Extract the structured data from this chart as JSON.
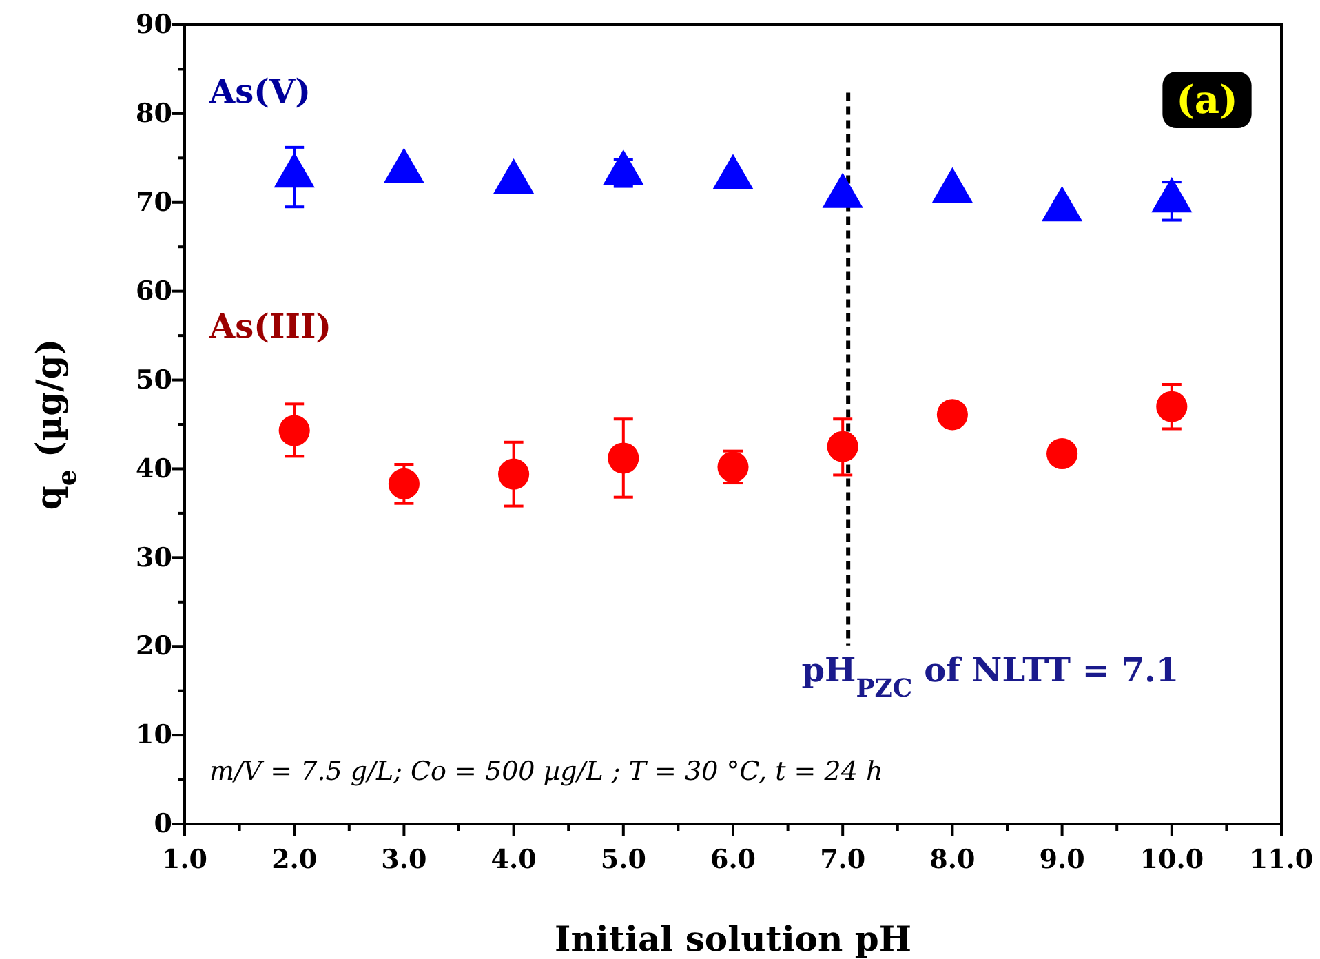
{
  "chart_data": {
    "type": "scatter",
    "xlabel": "Initial solution pH",
    "ylabel": "q$_{e}$ (µg/g)",
    "x": [
      2,
      3,
      4,
      5,
      6,
      7,
      8,
      9,
      10
    ],
    "series": [
      {
        "name": "As(V)",
        "color": "#0000ff",
        "marker": "triangle",
        "values": [
          73,
          73.5,
          72.3,
          73.3,
          72.8,
          70.7,
          71.3,
          69.2,
          70.2
        ],
        "errors": [
          [
            69.5,
            76.2
          ],
          null,
          null,
          [
            71.8,
            74.8
          ],
          null,
          null,
          null,
          null,
          [
            68,
            72.3
          ]
        ]
      },
      {
        "name": "As(III)",
        "color": "#ff0000",
        "marker": "circle",
        "values": [
          44.3,
          38.3,
          39.4,
          41.2,
          40.2,
          42.5,
          46.1,
          41.7,
          47
        ],
        "errors": [
          [
            41.4,
            47.3
          ],
          [
            36.1,
            40.5
          ],
          [
            35.8,
            43
          ],
          [
            36.8,
            45.6
          ],
          [
            38.4,
            42
          ],
          [
            39.3,
            45.6
          ],
          null,
          null,
          [
            44.5,
            49.5
          ]
        ]
      }
    ],
    "xlim": [
      1,
      11
    ],
    "xticks": [
      {
        "value": 1,
        "label": "1.0"
      },
      {
        "value": 1.5,
        "label": null
      },
      {
        "value": 2,
        "label": "2.0"
      },
      {
        "value": 2.5,
        "label": null
      },
      {
        "value": 3,
        "label": "3.0"
      },
      {
        "value": 3.5,
        "label": null
      },
      {
        "value": 4,
        "label": "4.0"
      },
      {
        "value": 4.5,
        "label": null
      },
      {
        "value": 5,
        "label": "5.0"
      },
      {
        "value": 5.5,
        "label": null
      },
      {
        "value": 6,
        "label": "6.0"
      },
      {
        "value": 6.5,
        "label": null
      },
      {
        "value": 7,
        "label": "7.0"
      },
      {
        "value": 7.5,
        "label": null
      },
      {
        "value": 8,
        "label": "8.0"
      },
      {
        "value": 8.5,
        "label": null
      },
      {
        "value": 9,
        "label": "9.0"
      },
      {
        "value": 9.5,
        "label": null
      },
      {
        "value": 10,
        "label": "10.0"
      },
      {
        "value": 10.5,
        "label": null
      },
      {
        "value": 11,
        "label": "11.0"
      }
    ],
    "ylim": [
      0,
      90
    ],
    "yticks": [
      0,
      {
        "value": 5,
        "label": null
      },
      10,
      {
        "value": 15,
        "label": null
      },
      20,
      {
        "value": 25,
        "label": null
      },
      30,
      {
        "value": 35,
        "label": null
      },
      40,
      {
        "value": 45,
        "label": null
      },
      50,
      {
        "value": 55,
        "label": null
      },
      60,
      {
        "value": 65,
        "label": null
      },
      70,
      {
        "value": 75,
        "label": null
      },
      80,
      {
        "value": 85,
        "label": null
      },
      90
    ],
    "ref_lines": [
      {
        "axis": "x",
        "value": 7.05,
        "label": "pH$_{PZC}$ of NLTT = 7.1",
        "color": "#000000",
        "line_style": "dashed"
      }
    ],
    "annotations": [
      "(a)",
      "m/V = 7.5 g/L; Co = 500 µg/L ; T = 30 °C, t = 24 h"
    ],
    "grid": false,
    "legend": false
  }
}
